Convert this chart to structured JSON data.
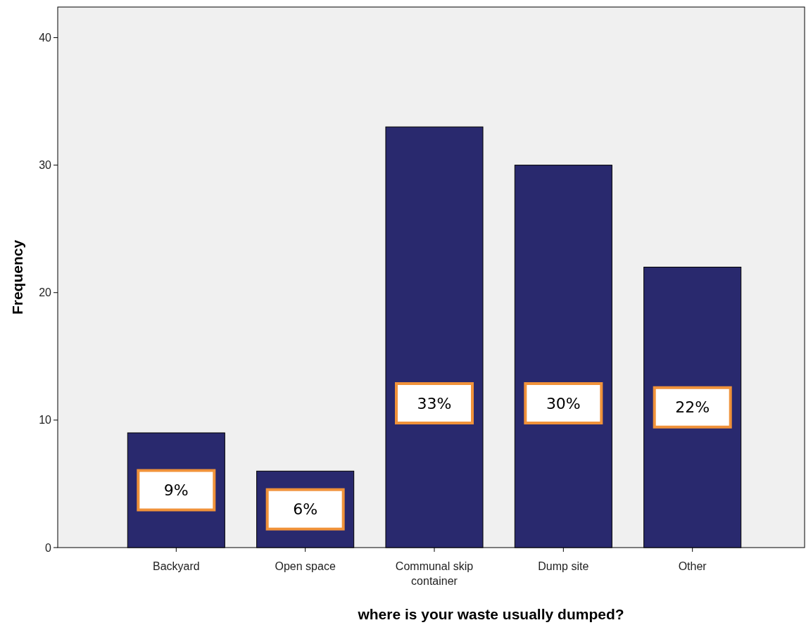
{
  "chart_data": {
    "type": "bar",
    "xlabel": "where is your waste usually dumped?",
    "ylabel": "Frequency",
    "categories": [
      "Backyard",
      "Open space",
      "Communal skip container",
      "Dump site",
      "Other"
    ],
    "values": [
      9,
      6,
      33,
      30,
      22
    ],
    "value_labels": [
      "9%",
      "6%",
      "33%",
      "30%",
      "22%"
    ],
    "color": "#29296e",
    "ylim": [
      0,
      42.4
    ],
    "yticks": [
      0,
      10,
      20,
      30,
      40
    ],
    "grid": false
  }
}
